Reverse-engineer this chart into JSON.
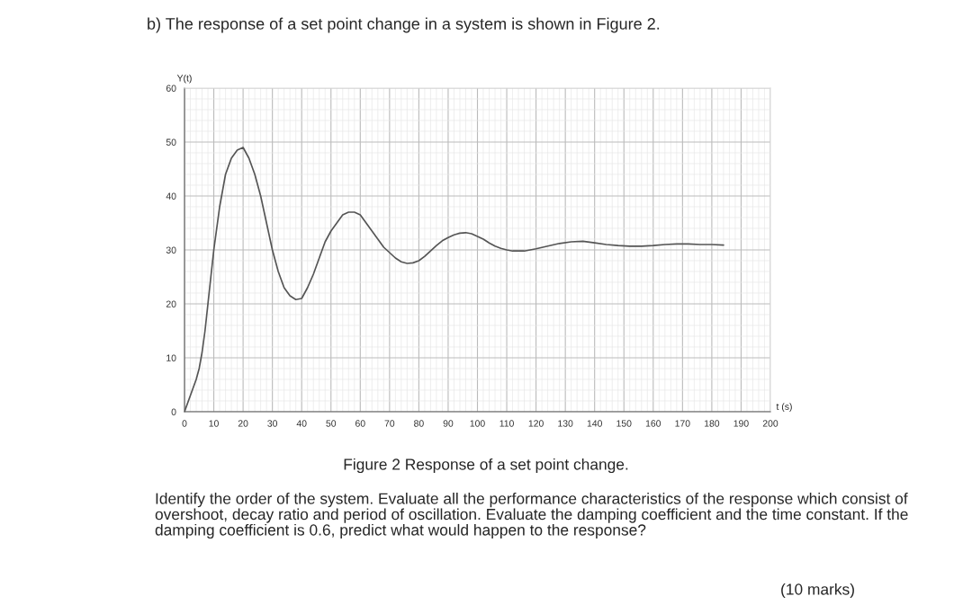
{
  "chart_data": {
    "type": "line",
    "title": "b) The response of a set point change in a system is shown in Figure 2.",
    "xlabel": "t (s)",
    "ylabel": "Y(t)",
    "annotations": [
      "Figure 2 Response of a set point change.",
      "Identify the order of the system. Evaluate all the performance characteristics of the response which consist of overshoot, decay ratio and period of oscillation. Evaluate the damping coefficient and the time constant. If the damping coefficient is 0.6, predict what would happen to the response?",
      "(10 marks)"
    ],
    "x": [
      0,
      2,
      4,
      5,
      6,
      7,
      8,
      9,
      10,
      12,
      14,
      16,
      18,
      20,
      22,
      24,
      26,
      28,
      30,
      32,
      34,
      36,
      38,
      40,
      42,
      44,
      46,
      48,
      50,
      52,
      54,
      56,
      58,
      60,
      62,
      64,
      66,
      68,
      70,
      72,
      74,
      76,
      78,
      80,
      82,
      84,
      86,
      88,
      90,
      92,
      94,
      96,
      98,
      100,
      102,
      104,
      106,
      108,
      110,
      112,
      114,
      116,
      118,
      120,
      124,
      128,
      132,
      136,
      140,
      144,
      148,
      152,
      156,
      160,
      164,
      168,
      172,
      176,
      180,
      184
    ],
    "series": [
      {
        "color": "#555555",
        "values": [
          0,
          3,
          6,
          8,
          11,
          15,
          20,
          25,
          30,
          38,
          44,
          47,
          48.5,
          49,
          47,
          44,
          40,
          35,
          30,
          26,
          23,
          21.5,
          20.8,
          21,
          23,
          25.5,
          28.5,
          31.5,
          33.5,
          35,
          36.5,
          37,
          37,
          36.5,
          35,
          33.5,
          32,
          30.5,
          29.5,
          28.5,
          27.8,
          27.5,
          27.6,
          28,
          28.8,
          29.8,
          30.8,
          31.7,
          32.3,
          32.8,
          33.1,
          33.2,
          33,
          32.5,
          32,
          31.3,
          30.7,
          30.3,
          30,
          29.8,
          29.8,
          29.8,
          30,
          30.2,
          30.7,
          31.2,
          31.5,
          31.6,
          31.3,
          31,
          30.8,
          30.7,
          30.7,
          30.8,
          31,
          31.1,
          31.1,
          31,
          31,
          30.9
        ]
      }
    ],
    "xlim": [
      0,
      200
    ],
    "ylim": [
      0,
      60
    ],
    "xticks": [
      0,
      10,
      20,
      30,
      40,
      50,
      60,
      70,
      80,
      90,
      100,
      110,
      120,
      130,
      140,
      150,
      160,
      170,
      180,
      190,
      200
    ],
    "yticks": [
      0,
      10,
      20,
      30,
      40,
      50,
      60
    ],
    "grid": true,
    "marker": "none",
    "line_style": "solid"
  }
}
